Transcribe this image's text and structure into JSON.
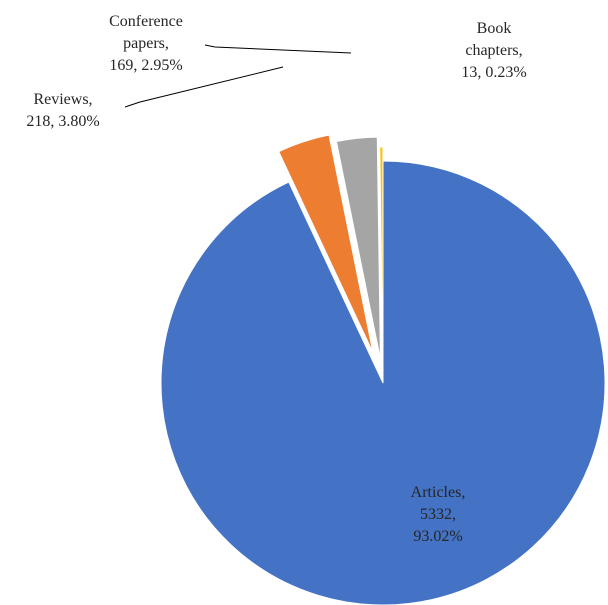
{
  "chart_data": {
    "type": "pie",
    "slices": [
      {
        "name": "Articles",
        "value": 5332,
        "percent": 93.02,
        "color": "#4472C4",
        "label_lines": [
          "Articles,",
          "5332,",
          "93.02%"
        ]
      },
      {
        "name": "Reviews",
        "value": 218,
        "percent": 3.8,
        "color": "#ED7D31",
        "label_lines": [
          "Reviews,",
          "218, 3.80%"
        ]
      },
      {
        "name": "Conference papers",
        "value": 169,
        "percent": 2.95,
        "color": "#A5A5A5",
        "label_lines": [
          "Conference",
          "papers,",
          "169, 2.95%"
        ]
      },
      {
        "name": "Book chapters",
        "value": 13,
        "percent": 0.23,
        "color": "#FFC000",
        "label_lines": [
          "Book",
          "chapters,",
          "13, 0.23%"
        ]
      }
    ],
    "start_angle": "12 o'clock",
    "direction": "clockwise",
    "exploded": true,
    "legend": "none"
  }
}
